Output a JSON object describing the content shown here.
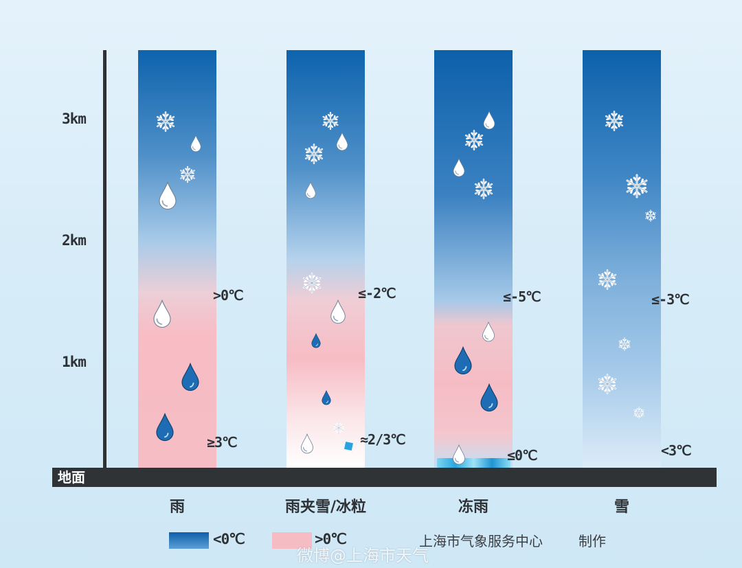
{
  "axis": {
    "ticks": [
      "3km",
      "2km",
      "1km"
    ],
    "ground_label": "地面"
  },
  "columns": [
    {
      "category": "雨",
      "temp_upper": ">0℃",
      "temp_lower": "≥3℃"
    },
    {
      "category": "雨夹雪/冰粒",
      "temp_upper": "≤-2℃",
      "temp_lower": "≈2/3℃"
    },
    {
      "category": "冻雨",
      "temp_upper": "≤-5℃",
      "temp_lower": "≤0℃"
    },
    {
      "category": "雪",
      "temp_upper": "≤-3℃",
      "temp_lower": "<3℃"
    }
  ],
  "legend": {
    "cold_label": "<0℃",
    "warm_label": ">0℃",
    "cold_color": "#1c6fb8",
    "warm_color": "#f6bcc4"
  },
  "credit": {
    "org": "上海市气象服务中心",
    "made_by": "制作"
  },
  "watermark": "微博@上海市天气",
  "icons": {
    "drop_white": "raindrop-white-icon",
    "drop_blue": "raindrop-blue-icon",
    "snow": "snowflake-icon",
    "ice": "ice-pellet-icon"
  }
}
